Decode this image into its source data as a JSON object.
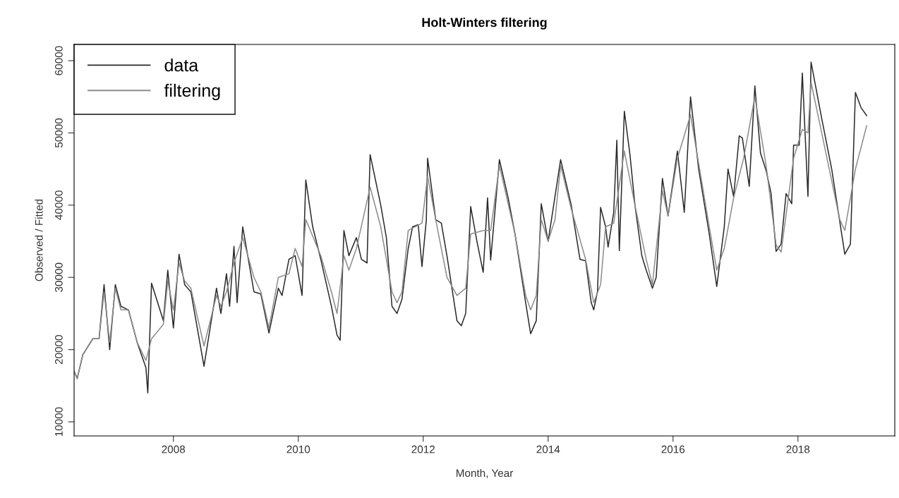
{
  "chart_data": {
    "type": "line",
    "title": "Holt-Winters filtering",
    "xlabel": "Month, Year",
    "ylabel": "Observed / Fitted",
    "xlim": [
      2006.41,
      2019.55
    ],
    "xticks": [
      2008,
      2010,
      2012,
      2014,
      2016,
      2018
    ],
    "ylim": [
      8050,
      62250
    ],
    "yticks": [
      10000,
      20000,
      30000,
      40000,
      50000,
      60000
    ],
    "grid": false,
    "legend": "top left",
    "marker": "none",
    "line_style": "solid",
    "series": [
      {
        "name": "data",
        "color": "#2a2a2a",
        "x": [
          2006.41,
          2006.46,
          2006.55,
          2006.71,
          2006.81,
          2006.89,
          2006.98,
          2007.07,
          2007.16,
          2007.28,
          2007.42,
          2007.56,
          2007.59,
          2007.65,
          2007.84,
          2007.91,
          2008.0,
          2008.09,
          2008.18,
          2008.28,
          2008.49,
          2008.69,
          2008.76,
          2008.85,
          2008.9,
          2008.97,
          2009.02,
          2009.11,
          2009.29,
          2009.4,
          2009.53,
          2009.68,
          2009.74,
          2009.85,
          2009.95,
          2010.06,
          2010.12,
          2010.23,
          2010.36,
          2010.53,
          2010.62,
          2010.67,
          2010.73,
          2010.81,
          2010.93,
          2011.01,
          2011.1,
          2011.15,
          2011.32,
          2011.41,
          2011.5,
          2011.58,
          2011.66,
          2011.76,
          2011.83,
          2011.92,
          2011.98,
          2012.05,
          2012.07,
          2012.2,
          2012.29,
          2012.38,
          2012.54,
          2012.61,
          2012.68,
          2012.76,
          2012.86,
          2012.96,
          2013.03,
          2013.08,
          2013.22,
          2013.36,
          2013.47,
          2013.64,
          2013.72,
          2013.81,
          2013.89,
          2014.0,
          2014.2,
          2014.37,
          2014.51,
          2014.6,
          2014.69,
          2014.73,
          2014.79,
          2014.84,
          2014.92,
          2014.96,
          2015.05,
          2015.1,
          2015.14,
          2015.22,
          2015.31,
          2015.39,
          2015.5,
          2015.57,
          2015.67,
          2015.73,
          2015.83,
          2015.92,
          2016.07,
          2016.18,
          2016.28,
          2016.41,
          2016.58,
          2016.7,
          2016.82,
          2016.88,
          2016.97,
          2017.06,
          2017.11,
          2017.22,
          2017.31,
          2017.4,
          2017.49,
          2017.57,
          2017.65,
          2017.73,
          2017.81,
          2017.9,
          2017.93,
          2018.02,
          2018.07,
          2018.16,
          2018.21,
          2018.38,
          2018.54,
          2018.75,
          2018.84,
          2018.92,
          2019.01,
          2019.1
        ],
        "values": [
          17000,
          16000,
          19300,
          21500,
          21500,
          29000,
          20000,
          29000,
          26000,
          25500,
          21000,
          17500,
          14000,
          29200,
          24000,
          31000,
          23000,
          33200,
          29000,
          28000,
          17700,
          28500,
          25000,
          30500,
          26000,
          34300,
          26500,
          37000,
          28000,
          27700,
          22300,
          28500,
          27500,
          32500,
          33000,
          27500,
          43500,
          37000,
          32500,
          26000,
          22000,
          21300,
          36500,
          33000,
          35500,
          32500,
          32000,
          47000,
          40000,
          35500,
          26000,
          25000,
          27000,
          34000,
          37000,
          37300,
          31500,
          38000,
          46500,
          38000,
          37500,
          33000,
          24000,
          23300,
          25000,
          39800,
          35000,
          30700,
          41000,
          32400,
          46300,
          41000,
          36000,
          26500,
          22200,
          24000,
          40200,
          35000,
          46300,
          40000,
          32500,
          32300,
          26500,
          25500,
          28000,
          39700,
          37000,
          34200,
          39000,
          49000,
          33700,
          53000,
          47000,
          40000,
          33000,
          31000,
          28500,
          30000,
          43700,
          38500,
          47500,
          39000,
          55000,
          45000,
          36000,
          28750,
          37000,
          45000,
          41200,
          49600,
          49300,
          42600,
          56500,
          47200,
          44800,
          41600,
          33600,
          34600,
          41600,
          40200,
          48300,
          48300,
          58300,
          41200,
          59800,
          52000,
          45000,
          33200,
          34600,
          55600,
          53500,
          52400
        ]
      },
      {
        "name": "filtering",
        "color": "#8c8c8c",
        "x": [
          2006.41,
          2006.46,
          2006.55,
          2006.71,
          2006.81,
          2006.89,
          2006.98,
          2007.07,
          2007.16,
          2007.28,
          2007.42,
          2007.56,
          2007.65,
          2007.84,
          2007.91,
          2008.0,
          2008.09,
          2008.18,
          2008.28,
          2008.49,
          2008.69,
          2008.76,
          2008.85,
          2008.97,
          2009.11,
          2009.29,
          2009.4,
          2009.53,
          2009.68,
          2009.85,
          2009.95,
          2010.06,
          2010.12,
          2010.36,
          2010.53,
          2010.62,
          2010.73,
          2010.81,
          2010.93,
          2011.15,
          2011.32,
          2011.5,
          2011.58,
          2011.66,
          2011.76,
          2011.98,
          2012.07,
          2012.2,
          2012.38,
          2012.54,
          2012.68,
          2012.76,
          2012.96,
          2013.08,
          2013.22,
          2013.47,
          2013.64,
          2013.72,
          2013.81,
          2013.89,
          2014.0,
          2014.11,
          2014.2,
          2014.37,
          2014.6,
          2014.73,
          2014.84,
          2014.92,
          2015.05,
          2015.22,
          2015.39,
          2015.57,
          2015.67,
          2015.83,
          2015.92,
          2016.07,
          2016.28,
          2016.58,
          2016.7,
          2016.82,
          2016.97,
          2017.13,
          2017.31,
          2017.49,
          2017.65,
          2017.73,
          2017.93,
          2018.07,
          2018.16,
          2018.21,
          2018.38,
          2018.67,
          2018.75,
          2018.92,
          2019.1
        ],
        "values": [
          17000,
          16000,
          19300,
          21500,
          21500,
          28000,
          21000,
          28500,
          25500,
          25500,
          21000,
          18500,
          21500,
          23500,
          29500,
          25500,
          32000,
          29500,
          28500,
          20500,
          27500,
          26000,
          28000,
          32000,
          35500,
          30000,
          28000,
          23000,
          30000,
          30500,
          34000,
          31500,
          38000,
          33000,
          28000,
          25000,
          33000,
          31000,
          34000,
          42500,
          37000,
          28000,
          26500,
          28000,
          36500,
          37500,
          44000,
          38000,
          30000,
          27500,
          28500,
          36000,
          36500,
          36500,
          45500,
          36000,
          27500,
          25500,
          27500,
          38000,
          35000,
          38000,
          45500,
          39500,
          32500,
          26500,
          29000,
          37000,
          37500,
          47500,
          40000,
          32500,
          29000,
          42000,
          38500,
          46500,
          52500,
          37000,
          31000,
          34000,
          41000,
          46500,
          55000,
          45500,
          34500,
          33500,
          46500,
          50500,
          50000,
          57000,
          50000,
          38000,
          36500,
          45000,
          51000
        ]
      }
    ]
  }
}
